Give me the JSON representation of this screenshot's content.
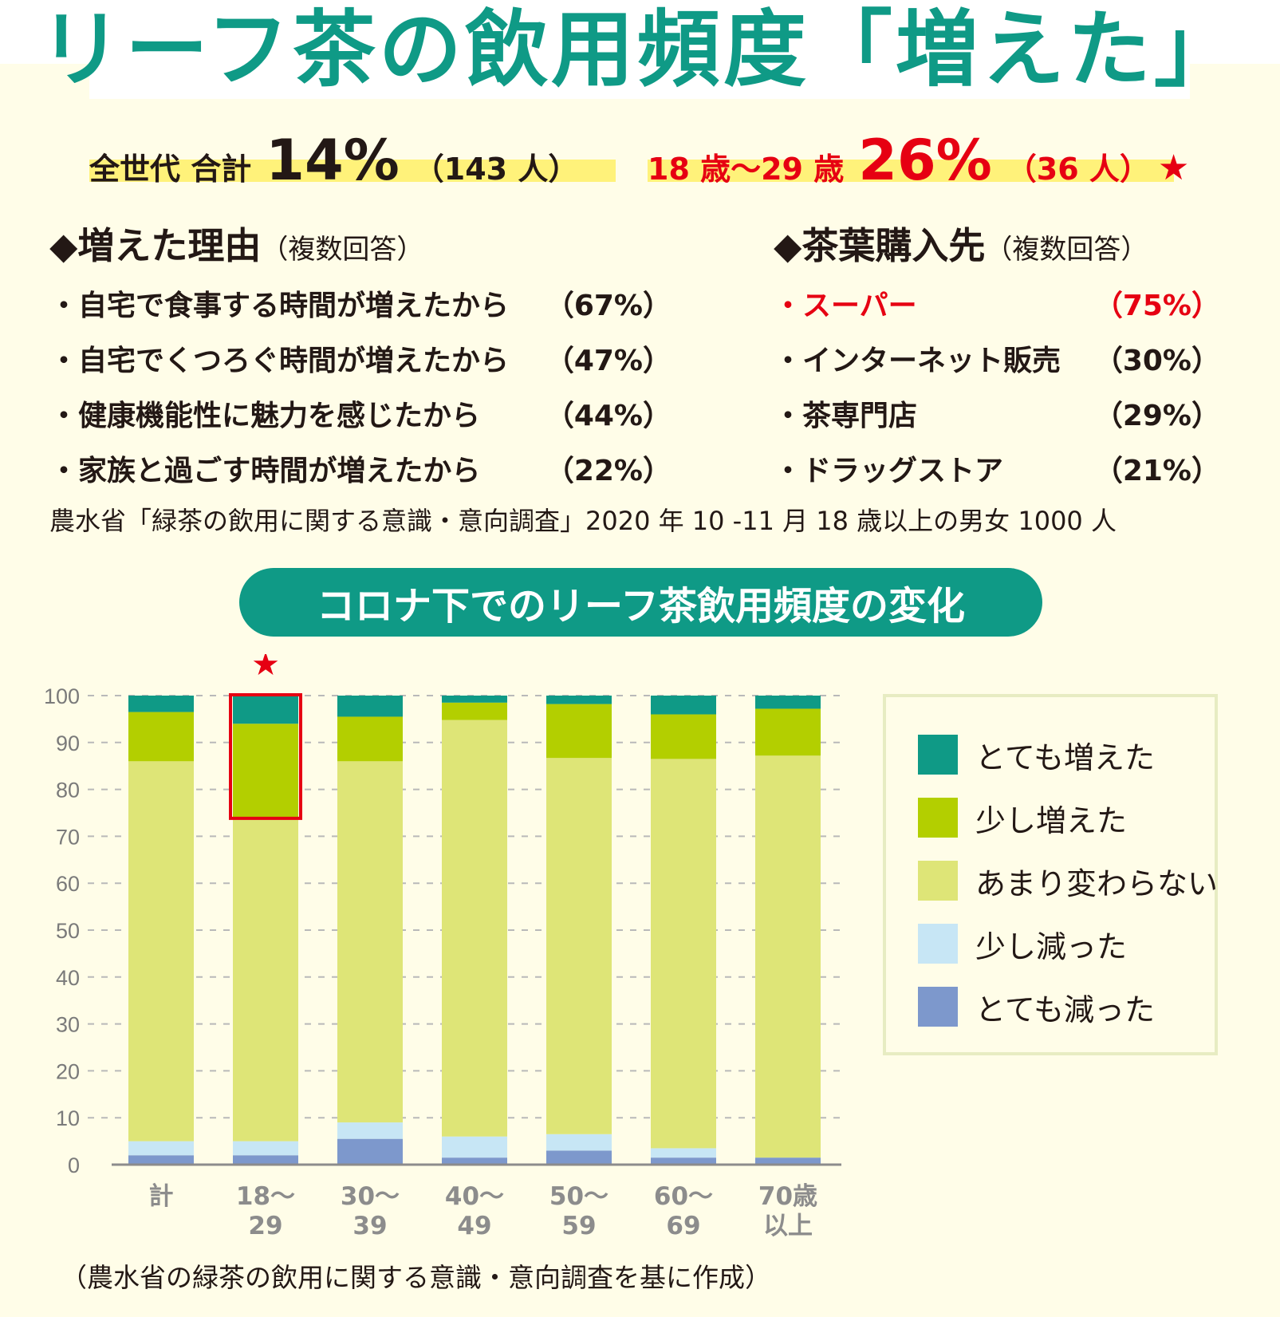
{
  "header": {
    "title": "リーフ茶の飲用頻度「増えた」"
  },
  "summary": {
    "all": {
      "label": "全世代 合計",
      "pct": "14%",
      "count": "（143 人）"
    },
    "young": {
      "label": "18 歳〜29 歳",
      "pct": "26%",
      "count": "（36 人）",
      "star": "★"
    }
  },
  "reasons": {
    "heading": "◆増えた理由",
    "note": "（複数回答）",
    "items": [
      {
        "text": "・自宅で食事する時間が増えたから",
        "pct": "（67%）"
      },
      {
        "text": "・自宅でくつろぐ時間が増えたから",
        "pct": "（47%）"
      },
      {
        "text": "・健康機能性に魅力を感じたから",
        "pct": "（44%）"
      },
      {
        "text": "・家族と過ごす時間が増えたから",
        "pct": "（22%）"
      }
    ]
  },
  "shops": {
    "heading": "◆茶葉購入先",
    "note": "（複数回答）",
    "items": [
      {
        "text": "・スーパー",
        "pct": "（75%）"
      },
      {
        "text": "・インターネット販売",
        "pct": "（30%）"
      },
      {
        "text": "・茶専門店",
        "pct": "（29%）"
      },
      {
        "text": "・ドラッグストア",
        "pct": "（21%）"
      }
    ]
  },
  "source": "農水省「緑茶の飲用に関する意識・意向調査」2020 年 10 -11 月 18 歳以上の男女 1000 人",
  "chart_title": "コロナ下でのリーフ茶飲用頻度の変化",
  "chart_note": "（農水省の緑茶の飲用に関する意識・意向調査を基に作成）",
  "colors": {
    "accent_green": "#0f9a86",
    "highlight_red": "#e60012",
    "highlight_yellow": "#fff27a",
    "panel_bg": "#fffde8"
  },
  "chart_data": {
    "type": "bar",
    "stacked": true,
    "categories": [
      [
        "計"
      ],
      [
        "18〜",
        "29"
      ],
      [
        "30〜",
        "39"
      ],
      [
        "40〜",
        "49"
      ],
      [
        "50〜",
        "59"
      ],
      [
        "60〜",
        "69"
      ],
      [
        "70歳",
        "以上"
      ]
    ],
    "series": [
      {
        "name": "とても減った",
        "color": "#7d98cc",
        "values": [
          2,
          2,
          5.5,
          1.5,
          3,
          1.5,
          1.5
        ]
      },
      {
        "name": "少し減った",
        "color": "#c7e6f5",
        "values": [
          3,
          3,
          3.5,
          4.5,
          3.5,
          2,
          0
        ]
      },
      {
        "name": "あまり変わらない",
        "color": "#dee577",
        "values": [
          81,
          69,
          77,
          88.8,
          80.2,
          83,
          85.7
        ]
      },
      {
        "name": "少し増えた",
        "color": "#b3cf00",
        "values": [
          10.5,
          20,
          9.5,
          3.7,
          11.5,
          9.5,
          10
        ]
      },
      {
        "name": "とても増えた",
        "color": "#0f9a86",
        "values": [
          3.5,
          6,
          4.5,
          1.5,
          1.8,
          4,
          2.8
        ]
      }
    ],
    "legend_order": [
      "とても増えた",
      "少し増えた",
      "あまり変わらない",
      "少し減った",
      "とても減った"
    ],
    "ylim": [
      0,
      100
    ],
    "yticks": [
      0,
      10,
      20,
      30,
      40,
      50,
      60,
      70,
      80,
      90,
      100
    ],
    "grid": true,
    "legend_position": "right",
    "highlight": {
      "category_index": 1,
      "series": [
        "とても増えた",
        "少し増えた"
      ],
      "marker": "★",
      "color": "#e60012"
    }
  }
}
